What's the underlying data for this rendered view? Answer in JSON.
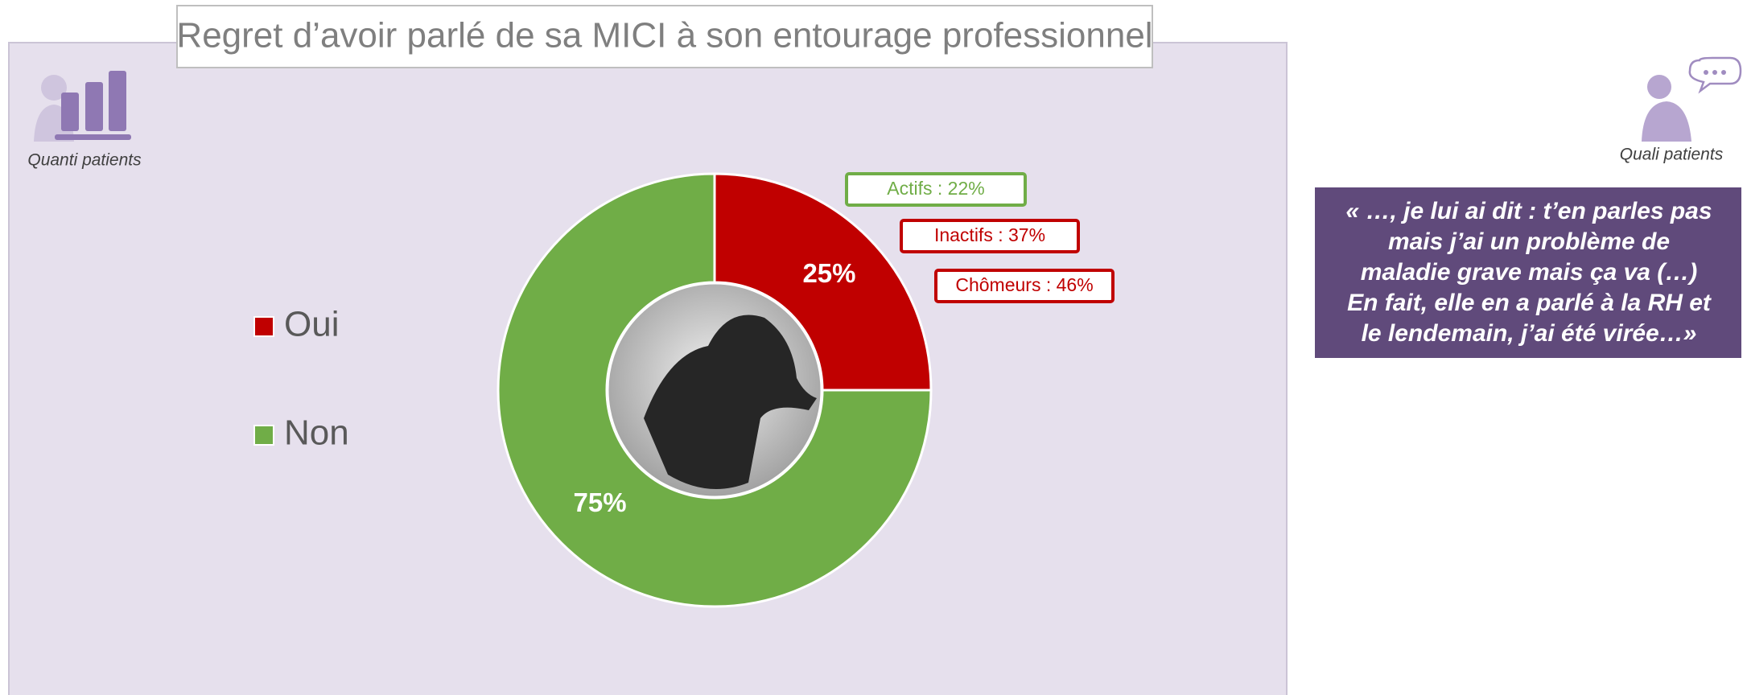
{
  "chart_data": {
    "type": "donut",
    "title": "Regret d’avoir parlé de sa MICI à son entourage professionnel",
    "categories": [
      "Oui",
      "Non"
    ],
    "values": [
      25,
      75
    ],
    "value_labels": [
      "25%",
      "75%"
    ],
    "colors": [
      "#c00000",
      "#70ad47"
    ],
    "annotations": [
      {
        "text": "Actifs : 22%",
        "color": "#70ad47"
      },
      {
        "text": "Inactifs : 37%",
        "color": "#c00000"
      },
      {
        "text": "Chômeurs : 46%",
        "color": "#c00000"
      }
    ]
  },
  "quanti_label": "Quanti patients",
  "quali_label": "Quali patients",
  "quote_lines": [
    "« …, je lui ai dit : t’en parles pas",
    "mais j’ai un problème de",
    "maladie grave mais ça va (…)",
    "En fait, elle en a parlé à la RH et",
    "le lendemain, j’ai été virée…»"
  ]
}
